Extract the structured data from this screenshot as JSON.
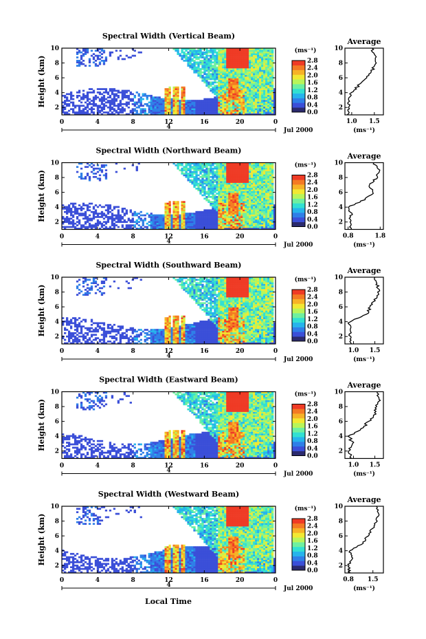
{
  "colorbar": {
    "unit": "(ms⁻¹)",
    "tick_labels": [
      "2.8",
      "2.4",
      "2.0",
      "1.6",
      "1.2",
      "0.8",
      "0.4",
      "0.0"
    ],
    "colors": [
      "#2b2a6e",
      "#3b4fd8",
      "#2f7fe8",
      "#26b4ec",
      "#32e0d2",
      "#6ef0a0",
      "#b8f55a",
      "#f2e832",
      "#f7b226",
      "#f47a23",
      "#ef3b25"
    ]
  },
  "shared": {
    "x_ticks": [
      "0",
      "4",
      "8",
      "12",
      "16",
      "20",
      "0"
    ],
    "day_marker": "4",
    "month_label": "Jul 2000",
    "y_ticks": [
      "2",
      "4",
      "6",
      "8",
      "10"
    ],
    "ylabel": "Height (km)",
    "xlabel": "Local Time",
    "avg_title": "Average",
    "avg_unit": "(ms⁻¹)"
  },
  "chart_data": [
    {
      "type": "heatmap",
      "title": "Spectral Width (Vertical Beam)",
      "ylabel": "Height (km)",
      "xlim": [
        0,
        24
      ],
      "ylim": [
        1,
        10
      ],
      "clim": [
        0.0,
        2.8
      ],
      "average_profile": {
        "type": "line",
        "title": "Average",
        "x_ticks": [
          "1.0",
          "1.5"
        ],
        "xlim": [
          0.85,
          1.7
        ],
        "ylim": [
          1,
          10
        ],
        "heights": [
          1,
          2,
          3,
          4,
          5,
          6,
          7,
          8,
          9,
          10
        ],
        "values": [
          0.9,
          0.95,
          0.92,
          1.0,
          1.15,
          1.3,
          1.45,
          1.55,
          1.5,
          1.45
        ]
      }
    },
    {
      "type": "heatmap",
      "title": "Spectral Width (Northward Beam)",
      "ylabel": "Height (km)",
      "xlim": [
        0,
        24
      ],
      "ylim": [
        1,
        10
      ],
      "clim": [
        0.0,
        2.8
      ],
      "average_profile": {
        "type": "line",
        "title": "Average",
        "x_ticks": [
          "0.8",
          "1.8"
        ],
        "xlim": [
          0.7,
          1.9
        ],
        "ylim": [
          1,
          10
        ],
        "heights": [
          1,
          2,
          3,
          4,
          5,
          6,
          7,
          8,
          9,
          10
        ],
        "values": [
          0.9,
          0.85,
          0.9,
          0.8,
          1.3,
          1.6,
          1.45,
          1.7,
          1.75,
          1.6
        ]
      }
    },
    {
      "type": "heatmap",
      "title": "Spectral Width (Southward Beam)",
      "ylabel": "Height (km)",
      "xlim": [
        0,
        24
      ],
      "ylim": [
        1,
        10
      ],
      "clim": [
        0.0,
        2.8
      ],
      "average_profile": {
        "type": "line",
        "title": "Average",
        "x_ticks": [
          "1.0",
          "1.5"
        ],
        "xlim": [
          0.8,
          1.7
        ],
        "ylim": [
          1,
          10
        ],
        "heights": [
          1,
          2,
          3,
          4,
          5,
          6,
          7,
          8,
          9,
          10
        ],
        "values": [
          0.95,
          0.9,
          0.95,
          0.9,
          1.3,
          1.4,
          1.5,
          1.6,
          1.55,
          1.5
        ]
      }
    },
    {
      "type": "heatmap",
      "title": "Spectral Width (Eastward Beam)",
      "ylabel": "Height (km)",
      "xlim": [
        0,
        24
      ],
      "ylim": [
        1,
        10
      ],
      "clim": [
        0.0,
        2.8
      ],
      "average_profile": {
        "type": "line",
        "title": "Average",
        "x_ticks": [
          "1.0",
          "1.5"
        ],
        "xlim": [
          0.8,
          1.7
        ],
        "ylim": [
          1,
          10
        ],
        "heights": [
          1,
          2,
          3,
          4,
          5,
          6,
          7,
          8,
          9,
          10
        ],
        "values": [
          0.95,
          0.9,
          0.98,
          0.9,
          1.2,
          1.35,
          1.5,
          1.55,
          1.6,
          1.55
        ]
      }
    },
    {
      "type": "heatmap",
      "title": "Spectral Width (Westward Beam)",
      "ylabel": "Height (km)",
      "xlim": [
        0,
        24
      ],
      "ylim": [
        1,
        10
      ],
      "clim": [
        0.0,
        2.8
      ],
      "average_profile": {
        "type": "line",
        "title": "Average",
        "x_ticks": [
          "0.8",
          "1.5"
        ],
        "xlim": [
          0.7,
          1.8
        ],
        "ylim": [
          1,
          10
        ],
        "heights": [
          1,
          2,
          3,
          4,
          5,
          6,
          7,
          8,
          9,
          10
        ],
        "values": [
          0.85,
          0.8,
          0.9,
          0.85,
          1.2,
          1.35,
          1.5,
          1.6,
          1.65,
          1.6
        ]
      }
    }
  ]
}
